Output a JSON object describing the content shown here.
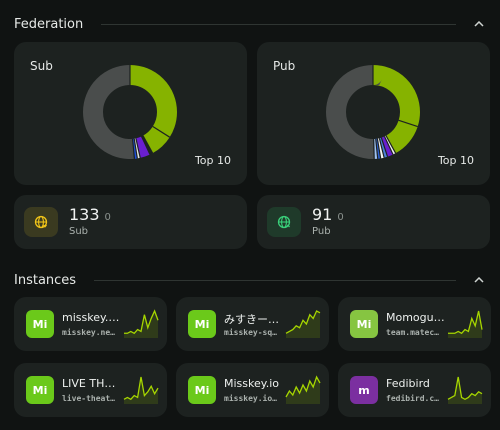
{
  "federation": {
    "title": "Federation",
    "sub": {
      "label": "Sub",
      "top_label": "Top 10",
      "segments": [
        {
          "value": 0.34,
          "color": "#86b300"
        },
        {
          "value": 0.08,
          "color": "#86b300"
        },
        {
          "value": 0.01,
          "color": "#1d2220"
        },
        {
          "value": 0.035,
          "color": "#6a1fd0"
        },
        {
          "value": 0.01,
          "color": "#dfe3e1"
        },
        {
          "value": 0.01,
          "color": "#1e4fd8"
        },
        {
          "value": 0.515,
          "color": "#4a4d4c"
        }
      ],
      "count": "133",
      "delta": "0",
      "stat_label": "Sub"
    },
    "pub": {
      "label": "Pub",
      "top_label": "Top 10",
      "segments": [
        {
          "value": 0.3,
          "color": "#86b300"
        },
        {
          "value": 0.12,
          "color": "#86b300"
        },
        {
          "value": 0.01,
          "color": "#f2f2f2"
        },
        {
          "value": 0.02,
          "color": "#6a1fd0"
        },
        {
          "value": 0.012,
          "color": "#4b7fd8"
        },
        {
          "value": 0.012,
          "color": "#f2f2f2"
        },
        {
          "value": 0.01,
          "color": "#2b5fd0"
        },
        {
          "value": 0.012,
          "color": "#9ec0f0"
        },
        {
          "value": 0.504,
          "color": "#4a4d4c"
        }
      ],
      "count": "91",
      "delta": "0",
      "stat_label": "Pub"
    }
  },
  "instances": {
    "title": "Instances",
    "items": [
      {
        "name": "misskey.…",
        "host": "misskey.ne…",
        "icon": "misskey-icon",
        "badge": "Mi",
        "color": "#6bc91a",
        "spark": [
          2,
          2,
          3,
          2,
          4,
          3,
          12,
          5,
          10,
          14,
          9
        ]
      },
      {
        "name": "みすきー…",
        "host": "misskey-sq…",
        "icon": "misskey-icon",
        "badge": "Mi",
        "color": "#6bc91a",
        "spark": [
          2,
          3,
          4,
          6,
          5,
          9,
          7,
          12,
          10,
          14,
          13
        ]
      },
      {
        "name": "Momogumi",
        "host": "team.matec…",
        "icon": "misskey-icon",
        "badge": "Mi",
        "color": "#86c541",
        "spark": [
          2,
          2,
          2,
          3,
          2,
          4,
          3,
          10,
          6,
          14,
          4
        ]
      },
      {
        "name": "LIVE TH…",
        "host": "live-theat…",
        "icon": "misskey-icon",
        "badge": "Mi",
        "color": "#6bc91a",
        "spark": [
          2,
          3,
          2,
          4,
          3,
          14,
          4,
          6,
          9,
          5,
          8
        ]
      },
      {
        "name": "Misskey.io",
        "host": "misskey.io…",
        "icon": "misskey-icon",
        "badge": "Mi",
        "color": "#6bc91a",
        "spark": [
          3,
          6,
          4,
          8,
          5,
          9,
          6,
          11,
          8,
          13,
          10
        ]
      },
      {
        "name": "Fedibird",
        "host": "fedibird.c…",
        "icon": "mastodon-icon",
        "badge": "m",
        "color": "#7b2fa0",
        "spark": [
          2,
          3,
          4,
          14,
          3,
          2,
          3,
          5,
          4,
          6,
          5
        ]
      }
    ]
  },
  "colors": {
    "accent": "#86b300",
    "background": "#101312",
    "panel": "#1d2220"
  }
}
